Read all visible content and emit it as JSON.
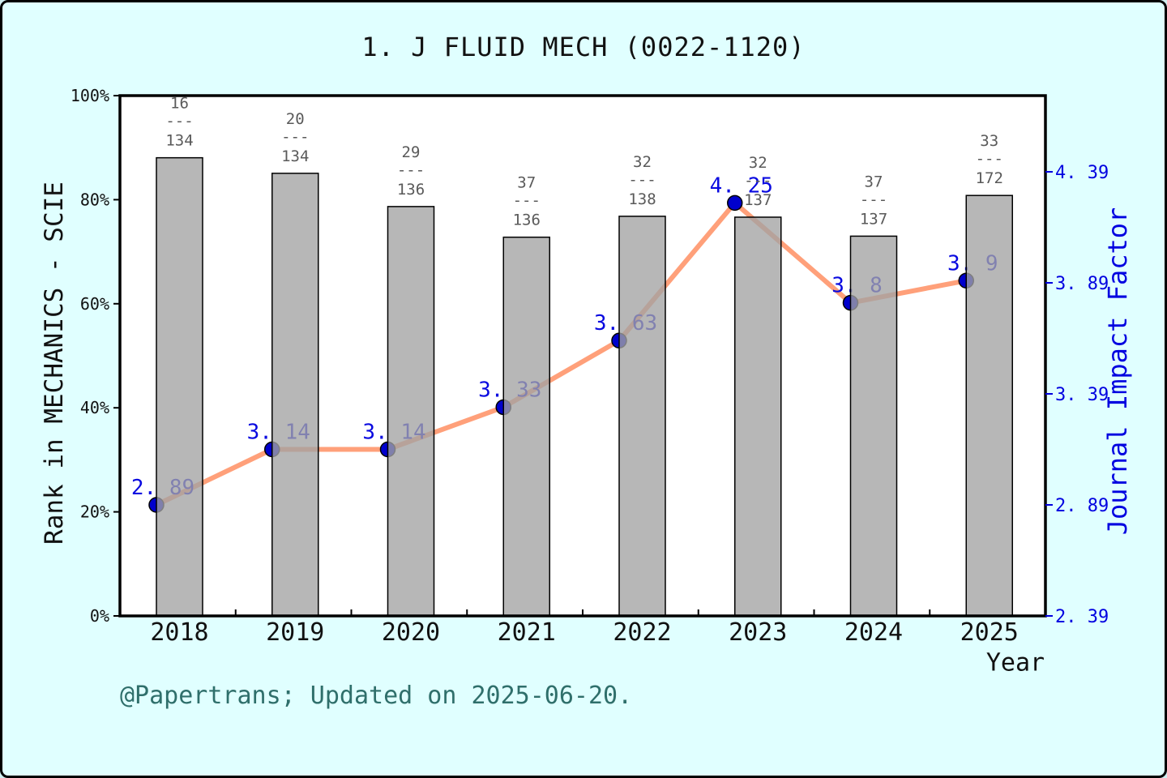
{
  "title": "1. J FLUID MECH (0022-1120)",
  "footer": "@Papertrans; Updated on 2025-06-20.",
  "colors": {
    "background": "#E0FFFF",
    "plot_background": "#FFFFFF",
    "bar_fill": "#A3A3A3",
    "bar_edge": "#000000",
    "line": "#FFA07A",
    "marker": "#0000CD",
    "marker_edge": "#000000",
    "point_label": "#0A0AE0",
    "right_axis": "#0000E0",
    "fraction_label": "#5A5A5A",
    "footer_text": "#2F6F6B",
    "spine": "#000000"
  },
  "chart_data": {
    "type": "bar",
    "subtype": "bar+line dual axis",
    "title": "1. J FLUID MECH (0022-1120)",
    "categories": [
      "2018",
      "2019",
      "2020",
      "2021",
      "2022",
      "2023",
      "2024",
      "2025"
    ],
    "bar_series": {
      "name": "Rank in MECHANICS - SCIE",
      "separator": "---",
      "rank_fractions": [
        {
          "numerator": "16",
          "denominator": "134"
        },
        {
          "numerator": "20",
          "denominator": "134"
        },
        {
          "numerator": "29",
          "denominator": "136"
        },
        {
          "numerator": "37",
          "denominator": "136"
        },
        {
          "numerator": "32",
          "denominator": "138"
        },
        {
          "numerator": "32",
          "denominator": "137"
        },
        {
          "numerator": "37",
          "denominator": "137"
        },
        {
          "numerator": "33",
          "denominator": "172"
        }
      ],
      "percentile_values": [
        88.06,
        85.07,
        78.68,
        72.79,
        76.81,
        76.64,
        72.99,
        80.81
      ]
    },
    "line_series": {
      "name": "Journal Impact Factor",
      "values": [
        2.89,
        3.14,
        3.14,
        3.33,
        3.63,
        4.25,
        3.8,
        3.9
      ],
      "point_labels": [
        "2. 89",
        "3. 14",
        "3. 14",
        "3. 33",
        "3. 63",
        "4. 25",
        "3. 8",
        "3. 9"
      ]
    },
    "left_axis": {
      "label": "Rank in MECHANICS - SCIE",
      "tick_labels": [
        "0%",
        "20%",
        "40%",
        "60%",
        "80%",
        "100%"
      ],
      "tick_values": [
        0,
        20,
        40,
        60,
        80,
        100
      ],
      "range": [
        0,
        100
      ]
    },
    "right_axis": {
      "label": "Journal Impact Factor",
      "tick_labels": [
        "2. 39",
        "2. 89",
        "3. 39",
        "3. 89",
        "4. 39"
      ],
      "tick_values": [
        2.39,
        2.89,
        3.39,
        3.89,
        4.39
      ],
      "range": [
        2.39,
        4.39
      ]
    },
    "x_axis": {
      "label": "Year"
    },
    "legend_position": "none",
    "grid": false
  }
}
